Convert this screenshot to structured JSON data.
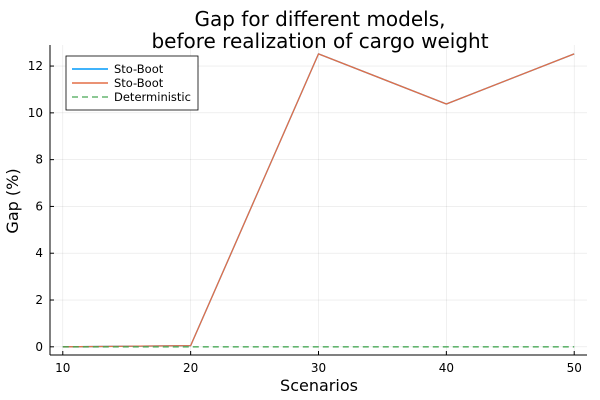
{
  "chart_data": {
    "type": "line",
    "title_lines": [
      "Gap for different models,",
      "before realization of cargo weight"
    ],
    "xlabel": "Scenarios",
    "ylabel": "Gap (%)",
    "x": [
      10,
      20,
      30,
      40,
      50
    ],
    "xlim": [
      9,
      51
    ],
    "ylim": [
      -0.35,
      12.9
    ],
    "xticks": [
      10,
      20,
      30,
      40,
      50
    ],
    "yticks": [
      0,
      2,
      4,
      6,
      8,
      10,
      12
    ],
    "grid": true,
    "legend_position": "top-left",
    "series": [
      {
        "name": "Sto-Boot",
        "color": "#009AFA",
        "dash": "solid",
        "values": [
          0,
          0.05,
          12.52,
          10.38,
          12.52
        ]
      },
      {
        "name": "Sto-Boot",
        "color": "#E36F47",
        "dash": "solid",
        "values": [
          0,
          0.05,
          12.52,
          10.38,
          12.52
        ]
      },
      {
        "name": "Deterministic",
        "color": "#3EA44E",
        "dash": "dashed",
        "values": [
          0,
          0,
          0,
          0,
          0
        ]
      }
    ]
  }
}
